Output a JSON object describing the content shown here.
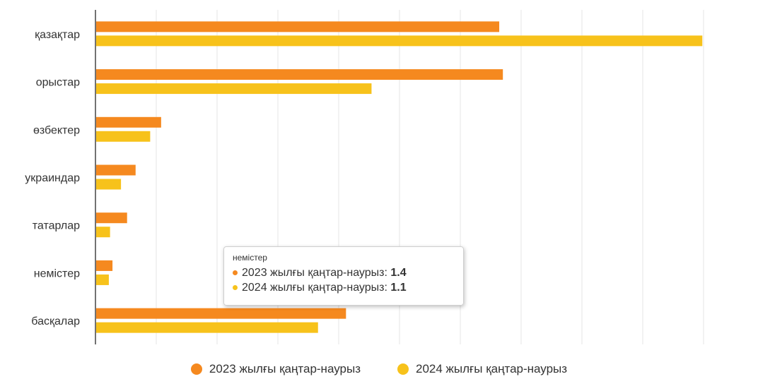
{
  "colors": {
    "series_2023": "#F5891F",
    "series_2024": "#F7C21B",
    "grid": "#e6e6e6",
    "axis": "#444444"
  },
  "chart_data": {
    "type": "bar",
    "orientation": "horizontal",
    "categories": [
      "қазақтар",
      "орыстар",
      "өзбектер",
      "украиндар",
      "татарлар",
      "немістер",
      "басқалар"
    ],
    "series": [
      {
        "name": "2023 жылғы қаңтар-наурыз",
        "values": [
          33.2,
          33.5,
          5.4,
          3.3,
          2.6,
          1.4,
          20.6
        ]
      },
      {
        "name": "2024 жылғы қаңтар-наурыз",
        "values": [
          49.9,
          22.7,
          4.5,
          2.1,
          1.2,
          1.1,
          18.3
        ]
      }
    ],
    "xlim": [
      0,
      50
    ],
    "grid": true,
    "x_tick_labels_shown": false,
    "legend_position": "bottom-center"
  },
  "tooltip": {
    "title": "немістер",
    "rows": [
      {
        "label": "2023 жылғы қаңтар-наурыз:",
        "value": "1.4"
      },
      {
        "label": "2024 жылғы қаңтар-наурыз:",
        "value": "1.1"
      }
    ]
  }
}
